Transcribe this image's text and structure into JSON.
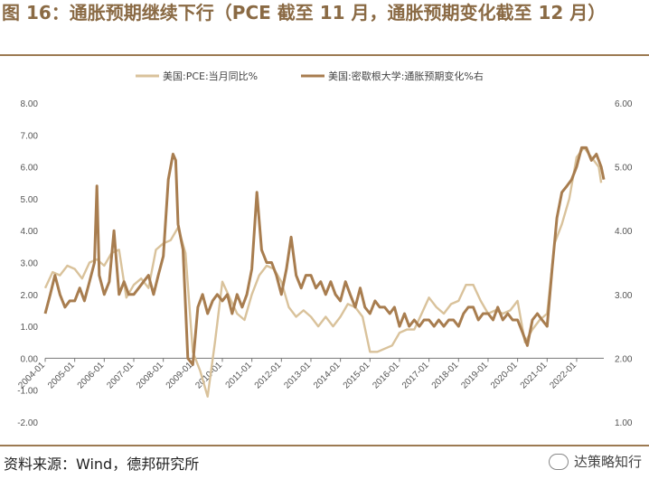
{
  "header": {
    "title": "图 16：通胀预期继续下行（PCE 截至 11 月，通胀预期变化截至 12 月）"
  },
  "footer": {
    "source": "资料来源：Wind，德邦研究所",
    "watermark": "达策略知行"
  },
  "chart_data": {
    "type": "line",
    "legend_position": "top",
    "grid": false,
    "x_tick_labels": [
      "2004-01",
      "2005-01",
      "2006-01",
      "2007-01",
      "2008-01",
      "2009-01",
      "2010-01",
      "2011-01",
      "2012-01",
      "2013-01",
      "2014-01",
      "2015-01",
      "2016-01",
      "2017-01",
      "2018-01",
      "2019-01",
      "2020-01",
      "2021-01",
      "2022-01"
    ],
    "x_range": [
      2004.0,
      2022.92
    ],
    "y_left": {
      "ticks": [
        "8.00",
        "7.00",
        "6.00",
        "5.00",
        "4.00",
        "3.00",
        "2.00",
        "1.00",
        "0.00",
        "-1.00",
        "-2.00"
      ],
      "range": [
        -2,
        8
      ]
    },
    "y_right": {
      "ticks": [
        "6.00",
        "5.00",
        "4.00",
        "3.00",
        "2.00",
        "1.00"
      ],
      "range": [
        1,
        6
      ]
    },
    "series": [
      {
        "name": "美国:PCE:当月同比%",
        "axis": "left",
        "color": "#d9c29b",
        "x": [
          2004.0,
          2004.25,
          2004.5,
          2004.75,
          2005.0,
          2005.25,
          2005.5,
          2005.75,
          2006.0,
          2006.25,
          2006.5,
          2006.75,
          2007.0,
          2007.25,
          2007.5,
          2007.75,
          2008.0,
          2008.25,
          2008.5,
          2008.75,
          2009.0,
          2009.25,
          2009.5,
          2009.75,
          2010.0,
          2010.25,
          2010.5,
          2010.75,
          2011.0,
          2011.25,
          2011.5,
          2011.75,
          2012.0,
          2012.25,
          2012.5,
          2012.75,
          2013.0,
          2013.25,
          2013.5,
          2013.75,
          2014.0,
          2014.25,
          2014.5,
          2014.75,
          2015.0,
          2015.25,
          2015.5,
          2015.75,
          2016.0,
          2016.25,
          2016.5,
          2016.75,
          2017.0,
          2017.25,
          2017.5,
          2017.75,
          2018.0,
          2018.25,
          2018.5,
          2018.75,
          2019.0,
          2019.25,
          2019.5,
          2019.75,
          2020.0,
          2020.25,
          2020.5,
          2020.75,
          2021.0,
          2021.25,
          2021.5,
          2021.75,
          2022.0,
          2022.25,
          2022.5,
          2022.75,
          2022.83
        ],
        "values": [
          2.2,
          2.7,
          2.6,
          2.9,
          2.8,
          2.5,
          3.0,
          3.1,
          2.9,
          3.3,
          3.4,
          1.9,
          2.3,
          2.5,
          2.2,
          3.4,
          3.6,
          3.7,
          4.1,
          3.3,
          0.2,
          -0.4,
          -1.2,
          0.5,
          2.4,
          1.9,
          1.4,
          1.2,
          2.0,
          2.6,
          2.9,
          2.8,
          2.4,
          1.6,
          1.3,
          1.5,
          1.3,
          1.0,
          1.3,
          1.0,
          1.3,
          1.7,
          1.6,
          1.3,
          0.2,
          0.2,
          0.3,
          0.4,
          0.8,
          0.9,
          0.9,
          1.4,
          1.9,
          1.6,
          1.4,
          1.7,
          1.8,
          2.3,
          2.3,
          1.8,
          1.4,
          1.5,
          1.4,
          1.5,
          1.8,
          0.5,
          0.9,
          1.2,
          1.4,
          3.6,
          4.2,
          5.0,
          6.3,
          6.6,
          6.3,
          6.0,
          5.5
        ]
      },
      {
        "name": "美国:密歇根大学:通胀预期变化%右",
        "axis": "right",
        "color": "#a87d4f",
        "x": [
          2004.0,
          2004.17,
          2004.33,
          2004.5,
          2004.67,
          2004.83,
          2005.0,
          2005.17,
          2005.33,
          2005.5,
          2005.67,
          2005.75,
          2005.83,
          2006.0,
          2006.17,
          2006.33,
          2006.5,
          2006.67,
          2006.83,
          2007.0,
          2007.17,
          2007.33,
          2007.5,
          2007.67,
          2007.83,
          2008.0,
          2008.17,
          2008.33,
          2008.42,
          2008.5,
          2008.67,
          2008.83,
          2009.0,
          2009.17,
          2009.33,
          2009.5,
          2009.67,
          2009.83,
          2010.0,
          2010.17,
          2010.33,
          2010.5,
          2010.67,
          2010.83,
          2011.0,
          2011.17,
          2011.33,
          2011.5,
          2011.67,
          2011.83,
          2012.0,
          2012.17,
          2012.33,
          2012.5,
          2012.67,
          2012.83,
          2013.0,
          2013.17,
          2013.33,
          2013.5,
          2013.67,
          2013.83,
          2014.0,
          2014.17,
          2014.33,
          2014.5,
          2014.67,
          2014.83,
          2015.0,
          2015.17,
          2015.33,
          2015.5,
          2015.67,
          2015.83,
          2016.0,
          2016.17,
          2016.33,
          2016.5,
          2016.67,
          2016.83,
          2017.0,
          2017.17,
          2017.33,
          2017.5,
          2017.67,
          2017.83,
          2018.0,
          2018.17,
          2018.33,
          2018.5,
          2018.67,
          2018.83,
          2019.0,
          2019.17,
          2019.33,
          2019.5,
          2019.67,
          2019.83,
          2020.0,
          2020.17,
          2020.33,
          2020.5,
          2020.67,
          2020.83,
          2021.0,
          2021.17,
          2021.33,
          2021.5,
          2021.67,
          2021.83,
          2022.0,
          2022.17,
          2022.33,
          2022.5,
          2022.67,
          2022.83,
          2022.92
        ],
        "values": [
          2.7,
          3.0,
          3.3,
          3.0,
          2.8,
          2.9,
          2.9,
          3.1,
          2.9,
          3.2,
          3.5,
          4.7,
          3.3,
          3.0,
          3.2,
          4.0,
          3.0,
          3.2,
          3.0,
          3.0,
          3.1,
          3.2,
          3.3,
          3.0,
          3.3,
          3.6,
          4.8,
          5.2,
          5.1,
          4.1,
          3.7,
          2.0,
          1.9,
          2.8,
          3.0,
          2.7,
          2.9,
          3.0,
          2.9,
          3.0,
          2.7,
          3.0,
          2.8,
          3.0,
          3.4,
          4.6,
          3.7,
          3.5,
          3.5,
          3.3,
          3.0,
          3.4,
          3.9,
          3.3,
          3.1,
          3.3,
          3.3,
          3.1,
          3.2,
          3.0,
          3.2,
          3.0,
          2.9,
          3.2,
          3.0,
          2.8,
          3.1,
          2.8,
          2.7,
          2.9,
          2.8,
          2.8,
          2.7,
          2.8,
          2.5,
          2.7,
          2.5,
          2.6,
          2.5,
          2.6,
          2.6,
          2.5,
          2.6,
          2.5,
          2.6,
          2.6,
          2.5,
          2.7,
          2.8,
          2.8,
          2.6,
          2.7,
          2.7,
          2.6,
          2.8,
          2.6,
          2.7,
          2.6,
          2.6,
          2.4,
          2.2,
          2.6,
          2.7,
          2.6,
          2.5,
          3.4,
          4.2,
          4.6,
          4.7,
          4.8,
          5.0,
          5.3,
          5.3,
          5.1,
          5.2,
          5.0,
          4.8
        ]
      }
    ]
  }
}
